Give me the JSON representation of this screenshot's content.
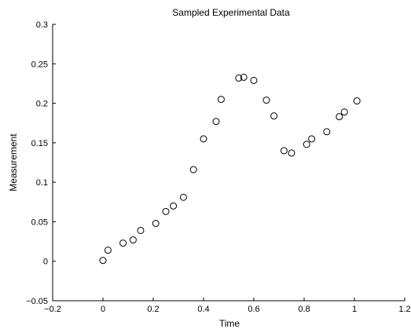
{
  "chart_data": {
    "type": "scatter",
    "title": "Sampled Experimental Data",
    "xlabel": "Time",
    "ylabel": "Measurement",
    "xlim": [
      -0.2,
      1.2
    ],
    "ylim": [
      -0.05,
      0.3
    ],
    "xticks": [
      -0.2,
      0,
      0.2,
      0.4,
      0.6,
      0.8,
      1,
      1.2
    ],
    "xtick_labels": [
      "−0.2",
      "0",
      "0.2",
      "0.4",
      "0.6",
      "0.8",
      "1",
      "1.2"
    ],
    "yticks": [
      -0.05,
      0,
      0.05,
      0.1,
      0.15,
      0.2,
      0.25,
      0.3
    ],
    "ytick_labels": [
      "−0.05",
      "0",
      "0.05",
      "0.1",
      "0.15",
      "0.2",
      "0.25",
      "0.3"
    ],
    "grid": false,
    "marker": "open-circle",
    "marker_color": "#000000",
    "series": [
      {
        "x": [
          0.0,
          0.02,
          0.08,
          0.12,
          0.15,
          0.21,
          0.25,
          0.28,
          0.32,
          0.36,
          0.4,
          0.45,
          0.47,
          0.54,
          0.56,
          0.6,
          0.65,
          0.68,
          0.72,
          0.75,
          0.81,
          0.83,
          0.89,
          0.94,
          0.96,
          1.01
        ],
        "y": [
          0.001,
          0.014,
          0.023,
          0.027,
          0.039,
          0.048,
          0.063,
          0.07,
          0.081,
          0.116,
          0.155,
          0.177,
          0.205,
          0.232,
          0.233,
          0.229,
          0.204,
          0.184,
          0.14,
          0.137,
          0.148,
          0.155,
          0.164,
          0.183,
          0.189,
          0.203
        ]
      }
    ]
  }
}
